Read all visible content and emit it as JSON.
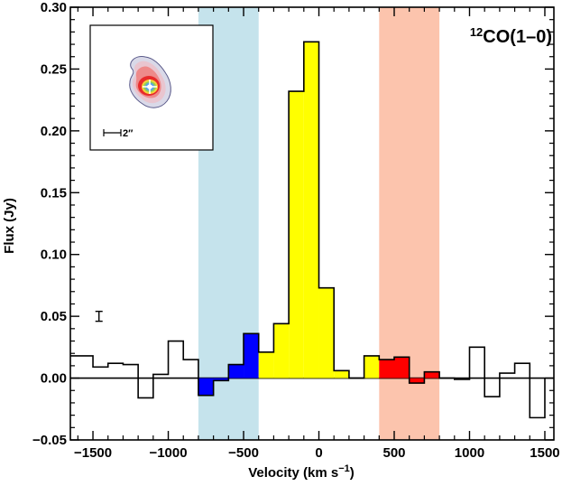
{
  "chart_data": {
    "type": "bar",
    "title": "CO(1–0)",
    "title_superscript": "12",
    "xlabel": "Velocity (km s",
    "xlabel_superscript": "−1",
    "xlabel_suffix": ")",
    "ylabel": "Flux (Jy)",
    "xlim": [
      -1650,
      1560
    ],
    "ylim": [
      -0.05,
      0.3
    ],
    "x_ticks": [
      -1500,
      -1000,
      -500,
      0,
      500,
      1000,
      1500
    ],
    "x_tick_labels": [
      "−1500",
      "−1000",
      "−500",
      "0",
      "500",
      "1000",
      "1500"
    ],
    "y_ticks": [
      -0.05,
      0.0,
      0.05,
      0.1,
      0.15,
      0.2,
      0.25,
      0.3
    ],
    "y_tick_labels": [
      "−0.05",
      "0.00",
      "0.05",
      "0.10",
      "0.15",
      "0.20",
      "0.25",
      "0.30"
    ],
    "bin_width": 100,
    "bins": [
      {
        "x": -1600,
        "y": 0.018,
        "color": "none"
      },
      {
        "x": -1500,
        "y": 0.009,
        "color": "none"
      },
      {
        "x": -1400,
        "y": 0.012,
        "color": "none"
      },
      {
        "x": -1300,
        "y": 0.011,
        "color": "none"
      },
      {
        "x": -1200,
        "y": -0.016,
        "color": "none"
      },
      {
        "x": -1100,
        "y": 0.003,
        "color": "none"
      },
      {
        "x": -1000,
        "y": 0.03,
        "color": "none"
      },
      {
        "x": -900,
        "y": 0.015,
        "color": "none"
      },
      {
        "x": -800,
        "y": -0.014,
        "color": "#0000ff"
      },
      {
        "x": -700,
        "y": -0.002,
        "color": "#0000ff"
      },
      {
        "x": -600,
        "y": 0.011,
        "color": "#0000ff"
      },
      {
        "x": -500,
        "y": 0.036,
        "color": "#0000ff"
      },
      {
        "x": -400,
        "y": 0.021,
        "color": "#ffff00"
      },
      {
        "x": -300,
        "y": 0.044,
        "color": "#ffff00"
      },
      {
        "x": -200,
        "y": 0.232,
        "color": "#ffff00"
      },
      {
        "x": -100,
        "y": 0.272,
        "color": "#ffff00"
      },
      {
        "x": 0,
        "y": 0.073,
        "color": "#ffff00"
      },
      {
        "x": 100,
        "y": 0.006,
        "color": "#ffff00"
      },
      {
        "x": 200,
        "y": 0.0,
        "color": "none"
      },
      {
        "x": 300,
        "y": 0.018,
        "color": "#ffff00"
      },
      {
        "x": 400,
        "y": 0.015,
        "color": "#ff0000"
      },
      {
        "x": 500,
        "y": 0.017,
        "color": "#ff0000"
      },
      {
        "x": 600,
        "y": -0.004,
        "color": "#ff0000"
      },
      {
        "x": 700,
        "y": 0.005,
        "color": "#ff0000"
      },
      {
        "x": 800,
        "y": 0.0,
        "color": "none"
      },
      {
        "x": 900,
        "y": -0.001,
        "color": "none"
      },
      {
        "x": 1000,
        "y": 0.025,
        "color": "none"
      },
      {
        "x": 1100,
        "y": -0.015,
        "color": "none"
      },
      {
        "x": 1200,
        "y": 0.004,
        "color": "none"
      },
      {
        "x": 1300,
        "y": 0.012,
        "color": "none"
      },
      {
        "x": 1400,
        "y": -0.032,
        "color": "none"
      }
    ],
    "shaded_regions": [
      {
        "name": "blue-wing",
        "from": -800,
        "to": -400,
        "color": "#c5e3ec"
      },
      {
        "name": "red-wing",
        "from": 400,
        "to": 800,
        "color": "#fcc4ad"
      }
    ],
    "error_bar": {
      "x": -1460,
      "y": 0.05,
      "err": 0.004
    },
    "inset": {
      "scale_label": "2′′"
    },
    "grid": false,
    "zero_line": true
  }
}
